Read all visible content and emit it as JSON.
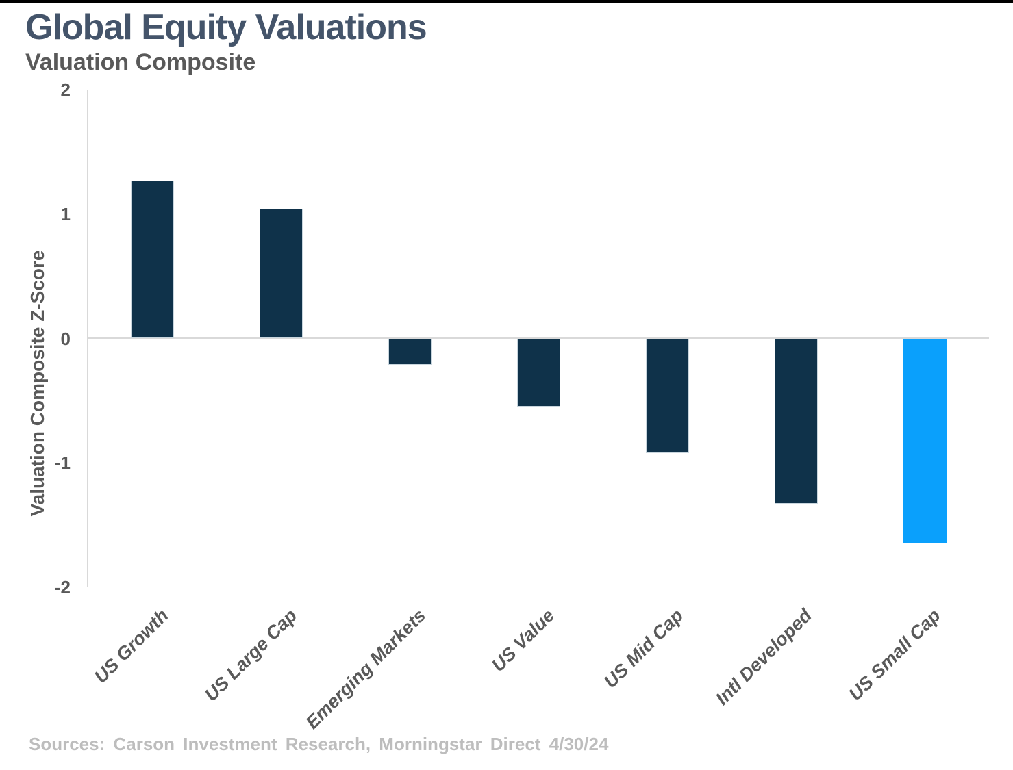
{
  "page": {
    "top_border_color": "#000000",
    "background_color": "#FFFFFF"
  },
  "chart_data": {
    "type": "bar",
    "title": "Global Equity Valuations",
    "subtitle": "Valuation Composite",
    "ylabel": "Valuation Composite Z-Score",
    "xlabel": "",
    "categories": [
      "US Growth",
      "US Large Cap",
      "Emerging Markets",
      "US Value",
      "US Mid Cap",
      "Intl Developed",
      "US Small Cap"
    ],
    "values": [
      1.27,
      1.04,
      -0.21,
      -0.55,
      -0.92,
      -1.33,
      -1.65
    ],
    "ylim": [
      -2,
      2
    ],
    "yticks": [
      2,
      1,
      0,
      -1,
      -2
    ],
    "grid": "zero-line-only",
    "legend_position": "none",
    "bar_color": "#0F324A",
    "highlight_color": "#0AA0FC",
    "highlight_index": 6,
    "axis_line_color": "#D9D9D9",
    "title_color": "#44546A",
    "subtitle_color": "#595959",
    "tick_label_color": "#595959"
  },
  "footer": {
    "source": "Sources: Carson Investment Research, Morningstar Direct 4/30/24"
  }
}
